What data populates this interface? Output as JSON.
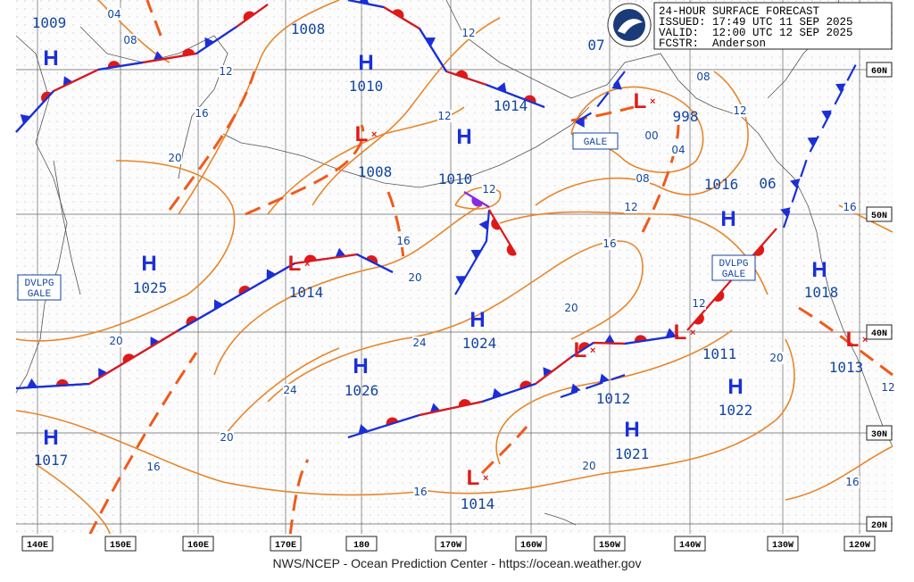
{
  "header": {
    "lines": [
      "24-HOUR SURFACE FORECAST",
      "ISSUED: 17:49 UTC 11 SEP 2025",
      "VALID:  12:00 UTC 12 SEP 2025",
      "FCSTR:  Anderson"
    ]
  },
  "footer": "NWS/NCEP - Ocean Prediction Center - https://ocean.weather.gov",
  "longitudes": [
    "140E",
    "150E",
    "160E",
    "170E",
    "180",
    "170W",
    "160W",
    "150W",
    "140W",
    "130W",
    "120W"
  ],
  "latitudes": [
    "60N",
    "50N",
    "40N",
    "30N",
    "20N"
  ],
  "systems": [
    {
      "letter": "H",
      "pressure": "1009"
    },
    {
      "letter": "H",
      "pressure": "1010"
    },
    {
      "letter": "L",
      "pressure": "1008"
    },
    {
      "letter": "H",
      "pressure": "1010"
    },
    {
      "letter": "L",
      "pressure": "998"
    },
    {
      "letter": "H",
      "pressure": "1025"
    },
    {
      "letter": "L",
      "pressure": "1014"
    },
    {
      "letter": "H",
      "pressure": "1024"
    },
    {
      "letter": "H",
      "pressure": "1026"
    },
    {
      "letter": "L",
      "pressure": "1012"
    },
    {
      "letter": "H",
      "pressure": "1021"
    },
    {
      "letter": "L",
      "pressure": "1014"
    },
    {
      "letter": "H",
      "pressure": "1017"
    },
    {
      "letter": "H",
      "pressure": "1022"
    },
    {
      "letter": "L",
      "pressure": "1011"
    },
    {
      "letter": "H",
      "pressure": "1018"
    },
    {
      "letter": "L",
      "pressure": "1013"
    },
    {
      "letter": "H",
      "pressure": "1016"
    }
  ],
  "pressure_labels": [
    "1008",
    "1014",
    "07",
    "06"
  ],
  "warnings": [
    "GALE",
    "DVLPG GALE",
    "DVLPG GALE"
  ],
  "isobar_labels": [
    "04",
    "08",
    "12",
    "16",
    "20",
    "12",
    "12",
    "12",
    "16",
    "20",
    "24",
    "24",
    "20",
    "16",
    "16",
    "20",
    "20",
    "16",
    "12",
    "08",
    "04",
    "00",
    "08",
    "12",
    "12",
    "20",
    "16",
    "12",
    "16",
    "20",
    "12"
  ]
}
